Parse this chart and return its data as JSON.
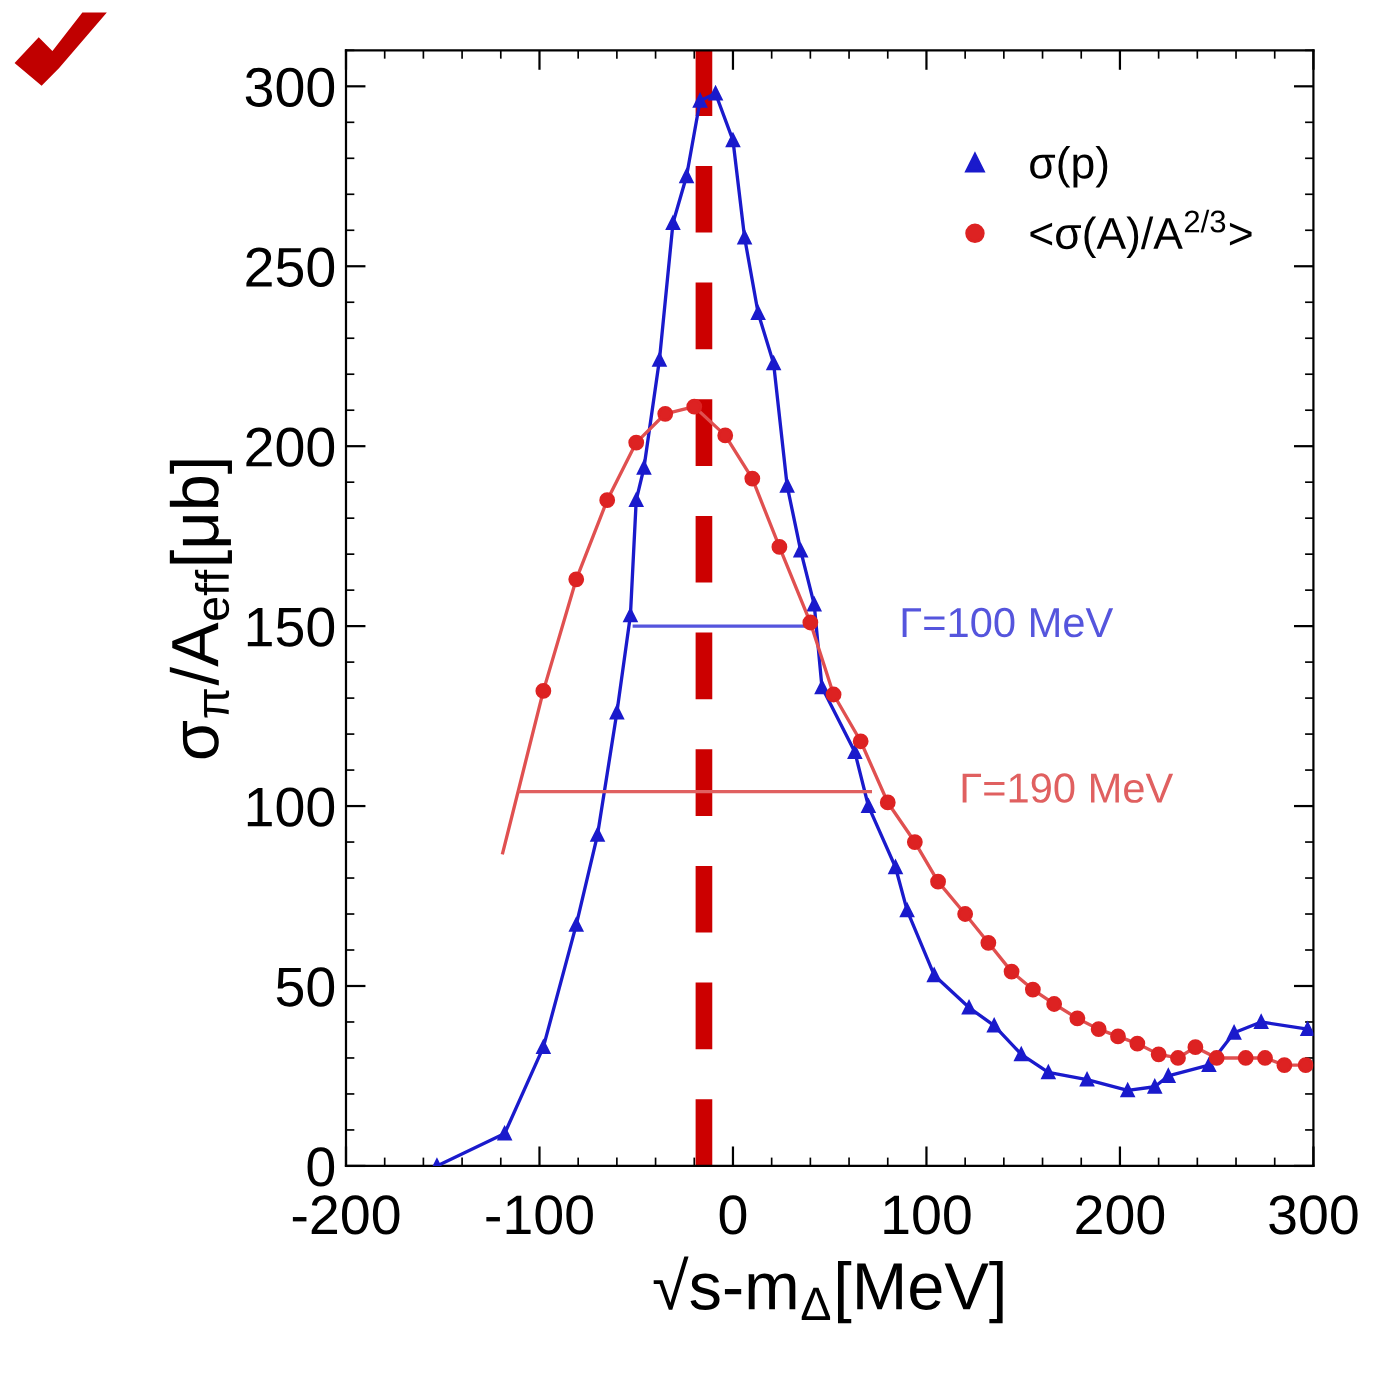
{
  "chart_data": {
    "type": "line",
    "xlabel": "√s-m$_{Δ}$[MeV]",
    "ylabel": "σ$_{π}$/A$_{eff}$[μb]",
    "xlim": [
      -200,
      300
    ],
    "ylim": [
      0,
      310
    ],
    "xticks": [
      -200,
      -100,
      0,
      100,
      200,
      300
    ],
    "yticks": [
      0,
      50,
      100,
      150,
      200,
      250,
      300
    ],
    "grid": false,
    "legend": "top right",
    "series": [
      {
        "name": "σ(p)",
        "marker": "triangle",
        "color": "#1a1acc",
        "x": [
          -153,
          -118,
          -98,
          -81,
          -70,
          -60,
          -53,
          -50,
          -46,
          -38,
          -31,
          -24,
          -17,
          -9,
          0,
          6,
          13,
          21,
          28,
          35,
          42,
          46,
          63,
          70,
          84,
          90,
          104,
          122,
          135,
          149,
          163,
          183,
          204,
          218,
          225,
          246,
          259,
          273,
          297
        ],
        "values": [
          0,
          9,
          33,
          67,
          92,
          126,
          153,
          185,
          194,
          224,
          262,
          275,
          296,
          298,
          285,
          258,
          237,
          223,
          189,
          171,
          156,
          133,
          115,
          100,
          83,
          71,
          53,
          44,
          39,
          31,
          26,
          24,
          21,
          22,
          25,
          28,
          37,
          40,
          38
        ]
      },
      {
        "type": "line",
        "marker": "none",
        "color": "#e05050",
        "x": [
          -119,
          -98,
          -81,
          -65,
          -50,
          -35,
          -20,
          -4,
          10,
          24,
          40,
          52,
          66,
          80,
          94,
          106,
          120,
          132,
          144,
          155,
          166,
          178,
          189,
          199,
          209,
          220,
          230,
          239,
          250,
          265,
          275,
          285,
          296
        ],
        "values": [
          87,
          132,
          163,
          185,
          201,
          209,
          211,
          203,
          191,
          172,
          151,
          131,
          118,
          101,
          90,
          79,
          70,
          62,
          54,
          49,
          45,
          41,
          38,
          36,
          34,
          31,
          30,
          33,
          30,
          30,
          30,
          28,
          28
        ]
      },
      {
        "name": "<σ(A)/A$^{2/3}$>",
        "type": "scatter",
        "marker": "circle",
        "color": "#dd2222",
        "x": [
          -98,
          -81,
          -65,
          -50,
          -35,
          -20,
          -4,
          10,
          24,
          40,
          52,
          66,
          80,
          94,
          106,
          120,
          132,
          144,
          155,
          166,
          178,
          189,
          199,
          209,
          220,
          230,
          239,
          250,
          265,
          275,
          285,
          296
        ],
        "values": [
          132,
          163,
          185,
          201,
          209,
          211,
          203,
          191,
          172,
          151,
          131,
          118,
          101,
          90,
          79,
          70,
          62,
          54,
          49,
          45,
          41,
          38,
          36,
          34,
          31,
          30,
          33,
          30,
          30,
          30,
          28,
          28
        ]
      },
      {
        "type": "line",
        "marker": "none",
        "color": "#5555dd",
        "x": [
          -51,
          40
        ],
        "values": [
          150,
          150
        ]
      },
      {
        "type": "line",
        "marker": "none",
        "color": "#e06060",
        "x": [
          -110,
          71
        ],
        "values": [
          104,
          104
        ]
      }
    ],
    "annotations": [
      "Γ=100 MeV",
      "Γ=190 MeV"
    ],
    "ref_lines": [
      {
        "axis": "x",
        "value": -15,
        "color": "#cc0000",
        "line_style": "dashed"
      }
    ]
  }
}
